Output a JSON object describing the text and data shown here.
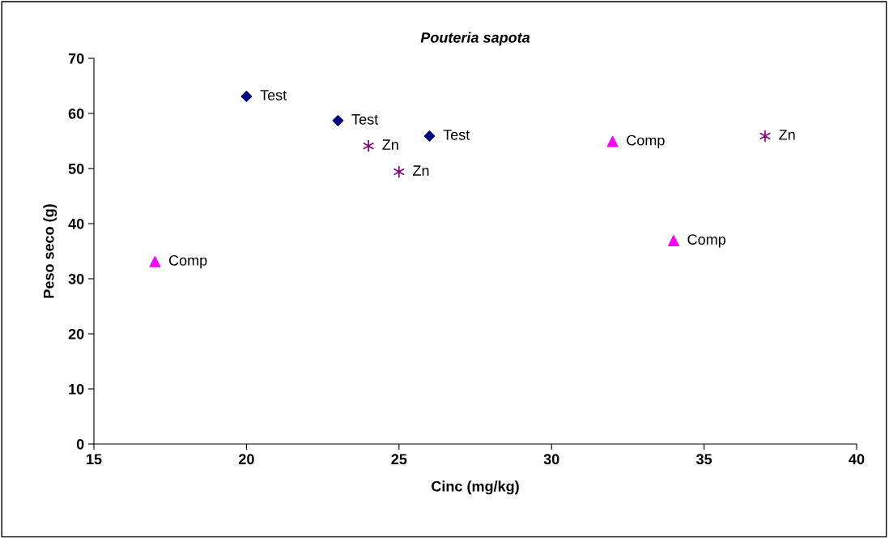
{
  "chart_data": {
    "type": "scatter",
    "title": "Pouteria sapota",
    "xlabel": "Cinc (mg/kg)",
    "ylabel": "Peso seco (g)",
    "xlim": [
      15,
      40
    ],
    "xticks": [
      15,
      20,
      25,
      30,
      35,
      40
    ],
    "ylim": [
      0,
      70
    ],
    "yticks": [
      0,
      10,
      20,
      30,
      40,
      50,
      60,
      70
    ],
    "grid": false,
    "legend": false,
    "series": [
      {
        "name": "Test",
        "color": "#000080",
        "marker": "diamond",
        "x": [
          20,
          23,
          26
        ],
        "values": [
          63.1,
          58.7,
          55.9
        ]
      },
      {
        "name": "Zn",
        "color": "#800080",
        "marker": "cross",
        "x": [
          24,
          25,
          37
        ],
        "values": [
          54.1,
          49.4,
          55.9
        ]
      },
      {
        "name": "Comp",
        "color": "#ff00ff",
        "marker": "triangle",
        "x": [
          17,
          32,
          34
        ],
        "values": [
          33.1,
          54.9,
          36.9
        ]
      }
    ]
  }
}
